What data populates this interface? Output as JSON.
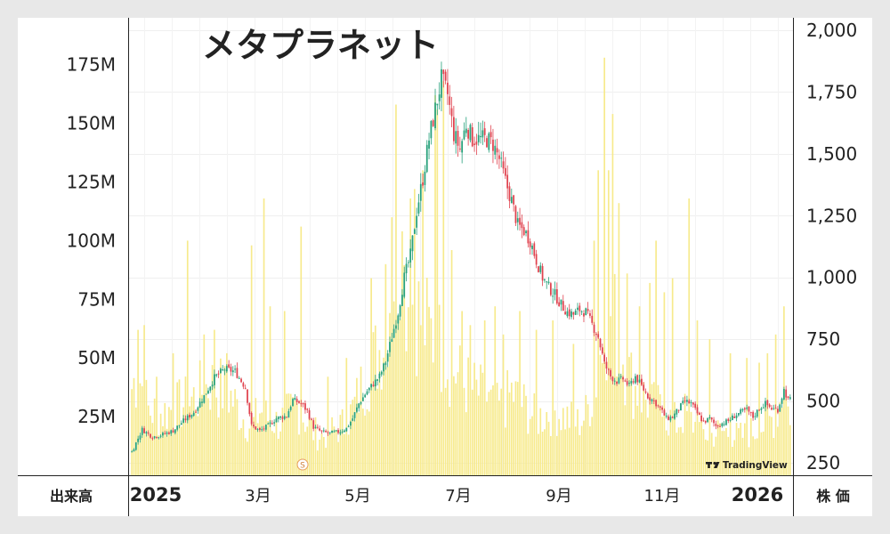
{
  "chart_data": {
    "type": "candlestick+volume",
    "title": "メタプラネット",
    "left_axis_label": "出来高",
    "right_axis_label": "株 価",
    "volume_ticks": [
      "25M",
      "50M",
      "75M",
      "100M",
      "125M",
      "150M",
      "175M"
    ],
    "volume_tick_values": [
      25,
      50,
      75,
      100,
      125,
      150,
      175
    ],
    "volume_ylim": [
      0,
      195
    ],
    "price_ticks": [
      "250",
      "500",
      "750",
      "1,000",
      "1,250",
      "1,500",
      "1,750",
      "2,000"
    ],
    "price_tick_values": [
      250,
      500,
      750,
      1000,
      1250,
      1500,
      1750,
      2000
    ],
    "price_ylim": [
      200,
      2050
    ],
    "x_ticks": [
      {
        "label": "2025",
        "bold": true,
        "date": "2025-01"
      },
      {
        "label": "3月",
        "bold": false,
        "date": "2025-03"
      },
      {
        "label": "5月",
        "bold": false,
        "date": "2025-05"
      },
      {
        "label": "7月",
        "bold": false,
        "date": "2025-07"
      },
      {
        "label": "9月",
        "bold": false,
        "date": "2025-09"
      },
      {
        "label": "11月",
        "bold": false,
        "date": "2025-11"
      },
      {
        "label": "2026",
        "bold": true,
        "date": "2026-01"
      }
    ],
    "split_marker": "S",
    "watermark": "TradingView",
    "up_color": "#26a17b",
    "down_color": "#e0424e",
    "volume_color": "#f7ea8c",
    "price_anchors": [
      [
        0,
        295
      ],
      [
        5,
        385
      ],
      [
        10,
        355
      ],
      [
        15,
        365
      ],
      [
        20,
        380
      ],
      [
        25,
        420
      ],
      [
        30,
        455
      ],
      [
        35,
        520
      ],
      [
        40,
        595
      ],
      [
        45,
        630
      ],
      [
        50,
        620
      ],
      [
        55,
        555
      ],
      [
        58,
        400
      ],
      [
        62,
        380
      ],
      [
        66,
        400
      ],
      [
        70,
        430
      ],
      [
        75,
        440
      ],
      [
        78,
        505
      ],
      [
        82,
        490
      ],
      [
        85,
        460
      ],
      [
        88,
        395
      ],
      [
        92,
        375
      ],
      [
        96,
        370
      ],
      [
        100,
        375
      ],
      [
        104,
        390
      ],
      [
        107,
        430
      ],
      [
        110,
        490
      ],
      [
        114,
        540
      ],
      [
        118,
        580
      ],
      [
        120,
        600
      ],
      [
        123,
        660
      ],
      [
        126,
        760
      ],
      [
        129,
        860
      ],
      [
        132,
        1000
      ],
      [
        135,
        1090
      ],
      [
        138,
        1270
      ],
      [
        141,
        1400
      ],
      [
        144,
        1560
      ],
      [
        147,
        1680
      ],
      [
        150,
        1800
      ],
      [
        153,
        1740
      ],
      [
        156,
        1580
      ],
      [
        159,
        1520
      ],
      [
        162,
        1620
      ],
      [
        165,
        1560
      ],
      [
        168,
        1560
      ],
      [
        172,
        1560
      ],
      [
        175,
        1540
      ],
      [
        178,
        1480
      ],
      [
        181,
        1390
      ],
      [
        184,
        1310
      ],
      [
        187,
        1210
      ],
      [
        190,
        1190
      ],
      [
        193,
        1150
      ],
      [
        196,
        1070
      ],
      [
        199,
        1000
      ],
      [
        202,
        960
      ],
      [
        205,
        930
      ],
      [
        208,
        890
      ],
      [
        211,
        860
      ],
      [
        214,
        850
      ],
      [
        217,
        870
      ],
      [
        220,
        860
      ],
      [
        223,
        810
      ],
      [
        226,
        760
      ],
      [
        229,
        650
      ],
      [
        232,
        600
      ],
      [
        235,
        580
      ],
      [
        238,
        590
      ],
      [
        241,
        560
      ],
      [
        244,
        600
      ],
      [
        247,
        560
      ],
      [
        250,
        520
      ],
      [
        253,
        500
      ],
      [
        256,
        470
      ],
      [
        259,
        430
      ],
      [
        262,
        435
      ],
      [
        265,
        470
      ],
      [
        268,
        500
      ],
      [
        271,
        490
      ],
      [
        274,
        450
      ],
      [
        277,
        415
      ],
      [
        280,
        430
      ],
      [
        283,
        400
      ],
      [
        286,
        410
      ],
      [
        289,
        420
      ],
      [
        292,
        440
      ],
      [
        295,
        455
      ],
      [
        298,
        465
      ],
      [
        301,
        435
      ],
      [
        304,
        470
      ],
      [
        307,
        490
      ],
      [
        310,
        470
      ],
      [
        313,
        465
      ],
      [
        316,
        545
      ],
      [
        318,
        505
      ]
    ],
    "volume_anchors": [
      [
        0,
        40
      ],
      [
        3,
        48
      ],
      [
        8,
        30
      ],
      [
        13,
        28
      ],
      [
        18,
        30
      ],
      [
        23,
        32
      ],
      [
        28,
        34
      ],
      [
        33,
        38
      ],
      [
        38,
        42
      ],
      [
        43,
        40
      ],
      [
        48,
        36
      ],
      [
        53,
        28
      ],
      [
        58,
        22
      ],
      [
        62,
        30
      ],
      [
        66,
        26
      ],
      [
        71,
        24
      ],
      [
        76,
        28
      ],
      [
        80,
        32
      ],
      [
        84,
        26
      ],
      [
        88,
        20
      ],
      [
        92,
        18
      ],
      [
        96,
        20
      ],
      [
        100,
        22
      ],
      [
        104,
        24
      ],
      [
        108,
        32
      ],
      [
        112,
        42
      ],
      [
        116,
        50
      ],
      [
        120,
        58
      ],
      [
        123,
        70
      ],
      [
        126,
        92
      ],
      [
        129,
        104
      ],
      [
        132,
        88
      ],
      [
        136,
        80
      ],
      [
        140,
        72
      ],
      [
        144,
        66
      ],
      [
        148,
        62
      ],
      [
        152,
        54
      ],
      [
        156,
        48
      ],
      [
        160,
        44
      ],
      [
        164,
        40
      ],
      [
        168,
        38
      ],
      [
        172,
        34
      ],
      [
        176,
        30
      ],
      [
        180,
        32
      ],
      [
        184,
        38
      ],
      [
        188,
        34
      ],
      [
        192,
        30
      ],
      [
        196,
        26
      ],
      [
        200,
        28
      ],
      [
        204,
        30
      ],
      [
        208,
        28
      ],
      [
        212,
        26
      ],
      [
        216,
        24
      ],
      [
        220,
        28
      ],
      [
        224,
        40
      ],
      [
        228,
        60
      ],
      [
        232,
        76
      ],
      [
        236,
        64
      ],
      [
        240,
        48
      ],
      [
        244,
        40
      ],
      [
        248,
        36
      ],
      [
        252,
        32
      ],
      [
        256,
        30
      ],
      [
        260,
        26
      ],
      [
        264,
        24
      ],
      [
        268,
        28
      ],
      [
        272,
        24
      ],
      [
        276,
        20
      ],
      [
        280,
        18
      ],
      [
        284,
        20
      ],
      [
        288,
        20
      ],
      [
        292,
        18
      ],
      [
        296,
        18
      ],
      [
        300,
        20
      ],
      [
        304,
        22
      ],
      [
        308,
        24
      ],
      [
        312,
        28
      ],
      [
        316,
        40
      ],
      [
        318,
        30
      ]
    ],
    "volume_spikes": [
      [
        3,
        62
      ],
      [
        6,
        64
      ],
      [
        12,
        42
      ],
      [
        20,
        52
      ],
      [
        27,
        100
      ],
      [
        35,
        60
      ],
      [
        40,
        62
      ],
      [
        46,
        52
      ],
      [
        58,
        98
      ],
      [
        64,
        118
      ],
      [
        67,
        72
      ],
      [
        74,
        70
      ],
      [
        82,
        106
      ],
      [
        95,
        42
      ],
      [
        104,
        50
      ],
      [
        116,
        84
      ],
      [
        123,
        90
      ],
      [
        126,
        110
      ],
      [
        128,
        158
      ],
      [
        131,
        104
      ],
      [
        135,
        118
      ],
      [
        137,
        122
      ],
      [
        141,
        130
      ],
      [
        147,
        162
      ],
      [
        148,
        156
      ],
      [
        151,
        168
      ],
      [
        155,
        96
      ],
      [
        160,
        70
      ],
      [
        164,
        64
      ],
      [
        171,
        66
      ],
      [
        176,
        72
      ],
      [
        180,
        60
      ],
      [
        188,
        70
      ],
      [
        196,
        62
      ],
      [
        204,
        66
      ],
      [
        214,
        56
      ],
      [
        224,
        100
      ],
      [
        226,
        130
      ],
      [
        229,
        178
      ],
      [
        231,
        130
      ],
      [
        233,
        154
      ],
      [
        236,
        116
      ],
      [
        240,
        86
      ],
      [
        246,
        72
      ],
      [
        251,
        82
      ],
      [
        254,
        100
      ],
      [
        258,
        78
      ],
      [
        262,
        84
      ],
      [
        270,
        118
      ],
      [
        274,
        66
      ],
      [
        280,
        58
      ],
      [
        290,
        52
      ],
      [
        298,
        50
      ],
      [
        304,
        48
      ],
      [
        308,
        52
      ],
      [
        312,
        60
      ],
      [
        316,
        72
      ]
    ]
  }
}
